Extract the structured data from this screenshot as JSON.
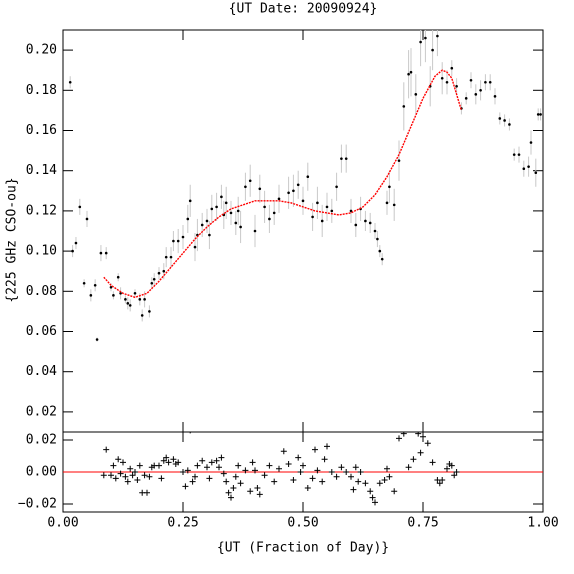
{
  "chart_data": [
    {
      "type": "scatter",
      "title": "{UT Date: 20090924}",
      "ylabel": "{225 GHz CSO-ou}",
      "xlim": [
        0,
        1
      ],
      "ylim": [
        0.01,
        0.21
      ],
      "yticks": [
        0.02,
        0.04,
        0.06,
        0.08,
        {
          "value": 0.1,
          "label": "0.10"
        },
        0.12,
        0.14,
        0.16,
        0.18,
        {
          "value": 0.2,
          "label": "0.20"
        }
      ],
      "points": {
        "color": "#000000",
        "errorbar_color": "#c8c8c8",
        "x": [
          0.015,
          0.02,
          0.027,
          0.035,
          0.044,
          0.05,
          0.058,
          0.067,
          0.071,
          0.079,
          0.09,
          0.1,
          0.105,
          0.115,
          0.12,
          0.13,
          0.135,
          0.14,
          0.15,
          0.16,
          0.165,
          0.17,
          0.18,
          0.185,
          0.19,
          0.2,
          0.21,
          0.215,
          0.225,
          0.23,
          0.24,
          0.25,
          0.26,
          0.265,
          0.275,
          0.28,
          0.29,
          0.3,
          0.305,
          0.31,
          0.32,
          0.33,
          0.335,
          0.34,
          0.35,
          0.36,
          0.365,
          0.37,
          0.38,
          0.39,
          0.4,
          0.41,
          0.42,
          0.43,
          0.44,
          0.45,
          0.47,
          0.48,
          0.49,
          0.5,
          0.51,
          0.52,
          0.53,
          0.54,
          0.55,
          0.56,
          0.57,
          0.58,
          0.59,
          0.6,
          0.61,
          0.62,
          0.63,
          0.64,
          0.65,
          0.655,
          0.66,
          0.665,
          0.675,
          0.68,
          0.69,
          0.7,
          0.71,
          0.72,
          0.725,
          0.735,
          0.745,
          0.755,
          0.765,
          0.77,
          0.78,
          0.79,
          0.8,
          0.81,
          0.82,
          0.83,
          0.84,
          0.85,
          0.86,
          0.87,
          0.88,
          0.89,
          0.9,
          0.91,
          0.92,
          0.93,
          0.94,
          0.95,
          0.96,
          0.97,
          0.975,
          0.985,
          0.99,
          0.995
        ],
        "values": [
          0.184,
          0.1,
          0.104,
          0.122,
          0.084,
          0.116,
          0.078,
          0.083,
          0.056,
          0.099,
          0.099,
          0.082,
          0.078,
          0.087,
          0.079,
          0.076,
          0.074,
          0.073,
          0.079,
          0.076,
          0.068,
          0.076,
          0.07,
          0.084,
          0.086,
          0.089,
          0.09,
          0.097,
          0.097,
          0.105,
          0.105,
          0.107,
          0.116,
          0.125,
          0.102,
          0.108,
          0.113,
          0.115,
          0.108,
          0.121,
          0.122,
          0.127,
          0.118,
          0.124,
          0.119,
          0.114,
          0.12,
          0.112,
          0.132,
          0.135,
          0.11,
          0.131,
          0.122,
          0.116,
          0.119,
          0.126,
          0.129,
          0.13,
          0.133,
          0.125,
          0.137,
          0.117,
          0.124,
          0.115,
          0.122,
          0.12,
          0.132,
          0.146,
          0.146,
          0.12,
          0.113,
          0.121,
          0.115,
          0.114,
          0.11,
          0.106,
          0.1,
          0.096,
          0.124,
          0.132,
          0.123,
          0.145,
          0.172,
          0.188,
          0.189,
          0.178,
          0.204,
          0.206,
          0.182,
          0.2,
          0.207,
          0.186,
          0.184,
          0.191,
          0.182,
          0.171,
          0.176,
          0.185,
          0.178,
          0.18,
          0.184,
          0.184,
          0.177,
          0.166,
          0.165,
          0.163,
          0.148,
          0.148,
          0.141,
          0.142,
          0.154,
          0.139,
          0.168,
          0.168
        ],
        "errors": [
          0.003,
          0.003,
          0.003,
          0.004,
          0.002,
          0.004,
          0.003,
          0.003,
          0.001,
          0.004,
          0.003,
          0.002,
          0.002,
          0.002,
          0.003,
          0.002,
          0.003,
          0.003,
          0.002,
          0.003,
          0.003,
          0.004,
          0.003,
          0.003,
          0.003,
          0.003,
          0.004,
          0.005,
          0.005,
          0.005,
          0.006,
          0.006,
          0.007,
          0.008,
          0.007,
          0.008,
          0.006,
          0.006,
          0.007,
          0.007,
          0.007,
          0.006,
          0.007,
          0.008,
          0.006,
          0.006,
          0.007,
          0.008,
          0.007,
          0.008,
          0.008,
          0.007,
          0.008,
          0.007,
          0.006,
          0.007,
          0.008,
          0.008,
          0.007,
          0.007,
          0.007,
          0.007,
          0.008,
          0.008,
          0.007,
          0.006,
          0.007,
          0.007,
          0.007,
          0.006,
          0.006,
          0.006,
          0.005,
          0.005,
          0.004,
          0.004,
          0.003,
          0.003,
          0.006,
          0.008,
          0.008,
          0.01,
          0.012,
          0.012,
          0.012,
          0.01,
          0.012,
          0.012,
          0.01,
          0.01,
          0.01,
          0.008,
          0.006,
          0.004,
          0.004,
          0.003,
          0.003,
          0.004,
          0.005,
          0.005,
          0.004,
          0.004,
          0.004,
          0.003,
          0.003,
          0.003,
          0.003,
          0.004,
          0.004,
          0.005,
          0.006,
          0.007,
          0.003,
          0.003
        ]
      },
      "fit": {
        "color": "#ff0000",
        "x": [
          0.085,
          0.1,
          0.125,
          0.15,
          0.175,
          0.2,
          0.225,
          0.25,
          0.275,
          0.3,
          0.325,
          0.35,
          0.375,
          0.4,
          0.425,
          0.45,
          0.475,
          0.5,
          0.525,
          0.55,
          0.575,
          0.6,
          0.625,
          0.65,
          0.675,
          0.7,
          0.725,
          0.75,
          0.775,
          0.79,
          0.8,
          0.81,
          0.82,
          0.83
        ],
        "values": [
          0.087,
          0.083,
          0.079,
          0.077,
          0.079,
          0.085,
          0.092,
          0.099,
          0.106,
          0.112,
          0.117,
          0.121,
          0.123,
          0.125,
          0.125,
          0.125,
          0.124,
          0.122,
          0.12,
          0.119,
          0.118,
          0.119,
          0.122,
          0.128,
          0.137,
          0.148,
          0.162,
          0.176,
          0.187,
          0.19,
          0.189,
          0.186,
          0.178,
          0.17
        ]
      }
    },
    {
      "type": "scatter",
      "xlabel": "{UT (Fraction of Day)}",
      "xlim": [
        0,
        1
      ],
      "xticks": [
        {
          "value": 0,
          "label": "0.00"
        },
        0.25,
        {
          "value": 0.5,
          "label": "0.50"
        },
        0.75,
        {
          "value": 1,
          "label": "1.00"
        }
      ],
      "ylim": [
        -0.025,
        0.025
      ],
      "yticks": [
        {
          "value": -0.02,
          "label": "−0.02"
        },
        {
          "value": 0,
          "label": "0.00"
        },
        0.02
      ],
      "reference_color": "#ff0000",
      "color": "#000000",
      "x": [
        0.085,
        0.09,
        0.1,
        0.105,
        0.11,
        0.115,
        0.12,
        0.125,
        0.13,
        0.135,
        0.14,
        0.145,
        0.15,
        0.155,
        0.16,
        0.165,
        0.17,
        0.175,
        0.18,
        0.185,
        0.19,
        0.2,
        0.205,
        0.21,
        0.215,
        0.22,
        0.23,
        0.235,
        0.24,
        0.25,
        0.255,
        0.26,
        0.265,
        0.27,
        0.275,
        0.28,
        0.29,
        0.3,
        0.305,
        0.31,
        0.32,
        0.325,
        0.33,
        0.335,
        0.34,
        0.345,
        0.35,
        0.355,
        0.36,
        0.365,
        0.37,
        0.38,
        0.39,
        0.395,
        0.4,
        0.405,
        0.41,
        0.42,
        0.43,
        0.44,
        0.45,
        0.46,
        0.47,
        0.48,
        0.49,
        0.495,
        0.5,
        0.51,
        0.52,
        0.525,
        0.53,
        0.54,
        0.545,
        0.55,
        0.56,
        0.57,
        0.58,
        0.59,
        0.6,
        0.605,
        0.61,
        0.615,
        0.62,
        0.63,
        0.64,
        0.645,
        0.65,
        0.66,
        0.67,
        0.675,
        0.68,
        0.69,
        0.7,
        0.71,
        0.72,
        0.73,
        0.74,
        0.745,
        0.75,
        0.76,
        0.77,
        0.78,
        0.785,
        0.79,
        0.8,
        0.805,
        0.81,
        0.815,
        0.82
      ],
      "values": [
        -0.002,
        0.014,
        -0.002,
        0.004,
        -0.004,
        0.008,
        -0.001,
        0.006,
        -0.003,
        -0.006,
        0.002,
        -0.002,
        0,
        -0.005,
        0.004,
        -0.013,
        -0.002,
        -0.013,
        -0.003,
        0.003,
        0.004,
        0.004,
        -0.004,
        0.007,
        0.009,
        0.006,
        0.008,
        0.005,
        0.006,
        0,
        -0.009,
        0.001,
        0.026,
        -0.006,
        -0.003,
        0.004,
        0.007,
        0.003,
        -0.004,
        0.006,
        0.007,
        0.003,
        0.009,
        -0.001,
        -0.006,
        -0.013,
        -0.016,
        -0.01,
        -0.003,
        0.004,
        -0.007,
        0.001,
        -0.012,
        0.006,
        0.001,
        -0.01,
        -0.014,
        -0.002,
        0.004,
        -0.006,
        0.002,
        0.013,
        0.005,
        -0.005,
        0.009,
        0,
        0.004,
        -0.01,
        -0.004,
        0.014,
        0.001,
        -0.006,
        0.008,
        0.016,
        0,
        -0.003,
        0.003,
        0,
        -0.003,
        -0.011,
        0.003,
        -0.006,
        0,
        -0.007,
        -0.012,
        -0.016,
        -0.019,
        -0.007,
        -0.005,
        0.002,
        -0.003,
        -0.012,
        0.021,
        0.024,
        0.003,
        0.008,
        0.024,
        0.012,
        0.022,
        0.018,
        0.006,
        -0.005,
        -0.007,
        -0.005,
        0.002,
        0.005,
        0.004,
        -0.002,
        0
      ]
    }
  ]
}
